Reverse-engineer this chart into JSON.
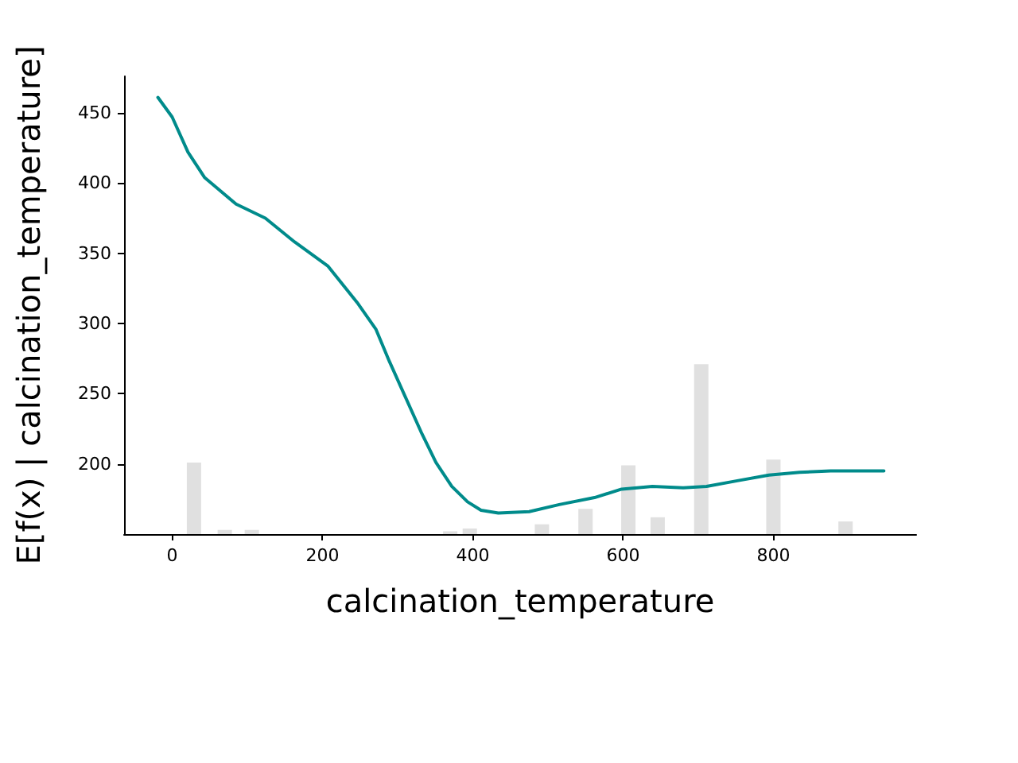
{
  "chart_data": {
    "type": "line",
    "xlabel": "calcination_temperature",
    "ylabel": "E[f(x) | calcination_temperature]",
    "xlim": [
      -64,
      990
    ],
    "xticks": [
      0,
      200,
      400,
      600,
      800
    ],
    "ylim": [
      150,
      476
    ],
    "yticks": [
      200,
      250,
      300,
      350,
      400,
      450
    ],
    "grid": false,
    "marker": "none",
    "line_style": "solid",
    "series": [
      {
        "type": "bar",
        "color": "#e0e0e0",
        "x": [
          29,
          70,
          106,
          370,
          396,
          492,
          550,
          607,
          646,
          704,
          800,
          896
        ],
        "values": [
          201,
          153,
          153,
          152,
          154,
          157,
          168,
          199,
          162,
          271,
          203,
          159
        ]
      },
      {
        "color": "#008b8b",
        "x": [
          -19,
          0,
          21,
          43,
          85,
          124,
          163,
          207,
          246,
          271,
          289,
          310,
          331,
          351,
          372,
          393,
          411,
          434,
          475,
          515,
          562,
          598,
          639,
          680,
          711,
          752,
          794,
          835,
          876,
          947
        ],
        "values": [
          461,
          447,
          422,
          404,
          385,
          375,
          358,
          341,
          315,
          296,
          273,
          248,
          223,
          201,
          184,
          173,
          167,
          165,
          166,
          171,
          176,
          182,
          184,
          183,
          184,
          188,
          192,
          194,
          195,
          195
        ]
      }
    ]
  }
}
